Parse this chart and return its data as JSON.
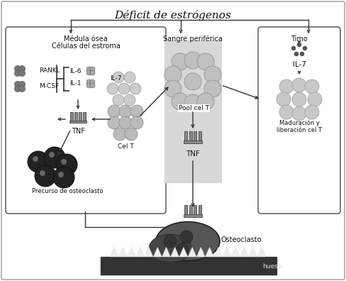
{
  "title": "Déficit de estrógenos",
  "bg_color": "#ffffff",
  "box1_label1": "Médula ósea",
  "box1_label2": "Células del estroma",
  "box2_label": "Sangre periférica",
  "box3_label": "Timo",
  "labels": {
    "RANKL": "RANKL",
    "MCSF": "M-CSF",
    "IL6": "IL-6",
    "IL1": "IL-1",
    "IL7_left": "IL-7",
    "TNF_left": "TNF",
    "CelT": "Cel T",
    "Pool": "Pool cel T",
    "TNF_center": "TNF",
    "IL7_right": "IL-7",
    "Maduracion": "Maduración y\nliberación cel T",
    "Precursor": "Precurso de osteoclasto",
    "Osteoclasto": "Osteoclasto",
    "Hueso": "hueso"
  }
}
